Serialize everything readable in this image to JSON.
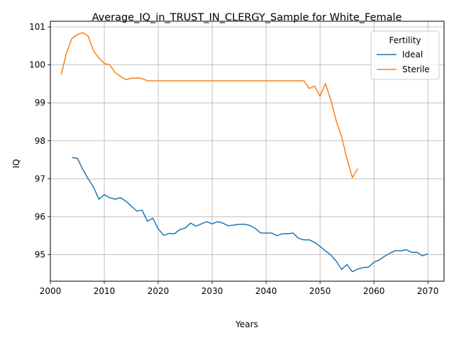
{
  "chart_data": {
    "type": "line",
    "title": "Average_IQ_in_TRUST_IN_CLERGY_Sample for White_Female",
    "xlabel": "Years",
    "ylabel": "IQ",
    "xlim": [
      2000,
      2073
    ],
    "ylim": [
      94.3,
      101.15
    ],
    "xticks": [
      2000,
      2010,
      2020,
      2030,
      2040,
      2050,
      2060,
      2070
    ],
    "yticks": [
      95,
      96,
      97,
      98,
      99,
      100,
      101
    ],
    "grid": true,
    "legend": {
      "title": "Fertility",
      "placement": "top-right"
    },
    "series": [
      {
        "name": "Ideal",
        "color": "#1f77b4",
        "x": [
          2004,
          2005,
          2006,
          2007,
          2008,
          2009,
          2010,
          2011,
          2012,
          2013,
          2014,
          2015,
          2016,
          2017,
          2018,
          2019,
          2020,
          2021,
          2022,
          2023,
          2024,
          2025,
          2026,
          2027,
          2028,
          2029,
          2030,
          2031,
          2032,
          2033,
          2034,
          2035,
          2036,
          2037,
          2038,
          2039,
          2040,
          2041,
          2042,
          2043,
          2044,
          2045,
          2046,
          2047,
          2048,
          2049,
          2050,
          2051,
          2052,
          2053,
          2054,
          2055,
          2056,
          2057,
          2058,
          2059,
          2060,
          2061,
          2062,
          2063,
          2064,
          2065,
          2066,
          2067,
          2068,
          2069,
          2070
        ],
        "y": [
          97.56,
          97.54,
          97.25,
          97.0,
          96.78,
          96.46,
          96.58,
          96.5,
          96.46,
          96.5,
          96.41,
          96.28,
          96.15,
          96.17,
          95.88,
          95.96,
          95.68,
          95.51,
          95.56,
          95.55,
          95.66,
          95.7,
          95.83,
          95.75,
          95.81,
          95.87,
          95.81,
          95.87,
          95.83,
          95.76,
          95.78,
          95.8,
          95.8,
          95.77,
          95.69,
          95.57,
          95.57,
          95.57,
          95.5,
          95.55,
          95.55,
          95.57,
          95.43,
          95.39,
          95.39,
          95.32,
          95.22,
          95.1,
          94.99,
          94.83,
          94.61,
          94.74,
          94.55,
          94.62,
          94.66,
          94.67,
          94.8,
          94.86,
          94.96,
          95.04,
          95.11,
          95.1,
          95.13,
          95.06,
          95.06,
          94.97,
          95.02
        ]
      },
      {
        "name": "Sterile",
        "color": "#ff7f0e",
        "x": [
          2002,
          2003,
          2004,
          2005,
          2006,
          2007,
          2008,
          2009,
          2010,
          2011,
          2012,
          2013,
          2014,
          2015,
          2016,
          2017,
          2018,
          2019,
          2020,
          2021,
          2022,
          2023,
          2024,
          2025,
          2026,
          2027,
          2028,
          2029,
          2030,
          2031,
          2032,
          2033,
          2034,
          2035,
          2036,
          2037,
          2038,
          2039,
          2040,
          2041,
          2042,
          2043,
          2044,
          2045,
          2046,
          2047,
          2048,
          2049,
          2050,
          2051,
          2052,
          2053,
          2054,
          2055,
          2056,
          2057
        ],
        "y": [
          99.74,
          100.32,
          100.7,
          100.8,
          100.85,
          100.76,
          100.37,
          100.18,
          100.04,
          100.0,
          99.8,
          99.7,
          99.61,
          99.65,
          99.66,
          99.64,
          99.58,
          99.58,
          99.58,
          99.58,
          99.58,
          99.58,
          99.58,
          99.58,
          99.58,
          99.58,
          99.58,
          99.58,
          99.58,
          99.58,
          99.58,
          99.58,
          99.58,
          99.58,
          99.58,
          99.58,
          99.58,
          99.58,
          99.58,
          99.58,
          99.58,
          99.58,
          99.58,
          99.58,
          99.58,
          99.58,
          99.38,
          99.44,
          99.17,
          99.51,
          99.08,
          98.53,
          98.11,
          97.52,
          97.03,
          97.27
        ]
      }
    ]
  }
}
